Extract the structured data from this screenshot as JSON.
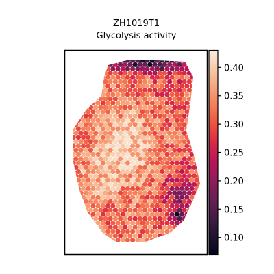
{
  "chart_data": {
    "type": "heatmap",
    "subtype": "spatial spot map (hexagonal spots)",
    "title_lines": [
      "ZH1019T1",
      "Glycolysis activity"
    ],
    "xlabel": "",
    "ylabel": "",
    "grid": false,
    "axes_ticks_shown": false,
    "colormap": "rocket",
    "colorbar": {
      "range": [
        0.07,
        0.43
      ],
      "ticks": [
        0.1,
        0.15,
        0.2,
        0.25,
        0.3,
        0.35,
        0.4
      ],
      "tick_labels": [
        "0.10",
        "0.15",
        "0.20",
        "0.25",
        "0.30",
        "0.35",
        "0.40"
      ]
    },
    "value_summary": {
      "min": 0.08,
      "max": 0.42,
      "typical": 0.3,
      "high_region": "center-left of tissue (values ~0.36-0.42)",
      "low_region": "top edge and right-lower side (values ~0.10-0.20)"
    }
  },
  "colors": {
    "rocket_stops": [
      "#03051a",
      "#221331",
      "#451c47",
      "#691f55",
      "#921c5b",
      "#b91657",
      "#d92847",
      "#ed513e",
      "#f47c56",
      "#f6a47c",
      "#f6c9a8",
      "#faebdd"
    ],
    "frame": "#000000",
    "background": "#ffffff"
  }
}
